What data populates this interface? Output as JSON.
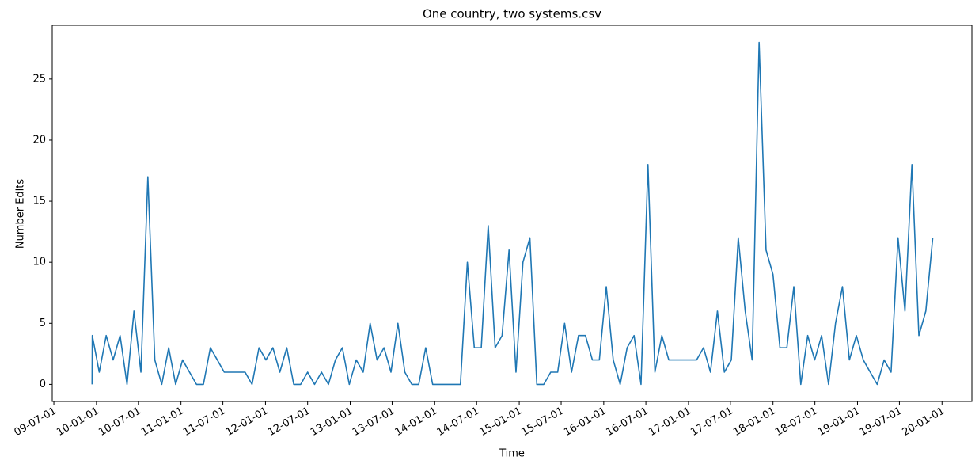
{
  "chart_data": {
    "type": "line",
    "title": "One country, two systems.csv",
    "xlabel": "Time",
    "ylabel": "Number Edits",
    "color": "#1f77b4",
    "x": [
      "09-12-13",
      "09-12-14",
      "10-01-13",
      "10-02-12",
      "10-03-14",
      "10-04-13",
      "10-05-13",
      "10-06-12",
      "10-07-12",
      "10-08-11",
      "10-09-10",
      "10-10-10",
      "10-11-09",
      "10-12-09",
      "11-01-08",
      "11-02-07",
      "11-03-09",
      "11-04-08",
      "11-05-08",
      "11-06-07",
      "11-07-07",
      "11-08-06",
      "11-09-05",
      "11-10-05",
      "11-11-04",
      "11-12-04",
      "12-01-03",
      "12-02-02",
      "12-03-03",
      "12-04-02",
      "12-05-02",
      "12-06-01",
      "12-07-01",
      "12-07-31",
      "12-08-30",
      "12-09-29",
      "12-10-29",
      "12-11-28",
      "12-12-28",
      "13-01-27",
      "13-02-26",
      "13-03-28",
      "13-04-27",
      "13-05-27",
      "13-06-26",
      "13-07-26",
      "13-08-25",
      "13-09-24",
      "13-10-24",
      "13-11-23",
      "13-12-23",
      "14-01-22",
      "14-02-21",
      "14-03-23",
      "14-04-22",
      "14-05-22",
      "14-06-21",
      "14-07-21",
      "14-08-20",
      "14-09-19",
      "14-10-19",
      "14-11-18",
      "14-12-18",
      "15-01-17",
      "15-02-16",
      "15-03-18",
      "15-04-17",
      "15-05-17",
      "15-06-16",
      "15-07-16",
      "15-08-15",
      "15-09-14",
      "15-10-14",
      "15-11-13",
      "15-12-13",
      "16-01-12",
      "16-02-11",
      "16-03-12",
      "16-04-11",
      "16-05-11",
      "16-06-10",
      "16-07-10",
      "16-08-09",
      "16-09-08",
      "16-10-08",
      "16-11-07",
      "16-12-07",
      "17-01-06",
      "17-02-05",
      "17-03-07",
      "17-04-06",
      "17-05-06",
      "17-06-05",
      "17-07-05",
      "17-08-04",
      "17-09-03",
      "17-10-03",
      "17-11-02",
      "17-12-02",
      "18-01-01",
      "18-01-31",
      "18-03-02",
      "18-04-01",
      "18-05-01",
      "18-05-31",
      "18-06-30",
      "18-07-30",
      "18-08-29",
      "18-09-28",
      "18-10-28",
      "18-11-27",
      "18-12-27",
      "19-01-26",
      "19-02-25",
      "19-03-27",
      "19-04-26",
      "19-05-26",
      "19-06-25",
      "19-07-25",
      "19-08-24",
      "19-09-23",
      "19-10-23",
      "19-11-22"
    ],
    "values": [
      0,
      4,
      1,
      4,
      2,
      4,
      0,
      6,
      1,
      17,
      2,
      0,
      3,
      0,
      2,
      1,
      0,
      0,
      3,
      2,
      1,
      1,
      1,
      1,
      0,
      3,
      2,
      3,
      1,
      3,
      0,
      0,
      1,
      0,
      1,
      0,
      2,
      3,
      0,
      2,
      1,
      5,
      2,
      3,
      1,
      5,
      1,
      0,
      0,
      3,
      0,
      0,
      0,
      0,
      0,
      10,
      3,
      3,
      13,
      3,
      4,
      11,
      1,
      10,
      12,
      0,
      0,
      1,
      1,
      5,
      1,
      4,
      4,
      2,
      2,
      8,
      2,
      0,
      3,
      4,
      0,
      18,
      1,
      4,
      2,
      2,
      2,
      2,
      2,
      3,
      1,
      6,
      1,
      2,
      12,
      6,
      2,
      28,
      11,
      9,
      3,
      3,
      8,
      0,
      4,
      2,
      4,
      0,
      5,
      8,
      2,
      4,
      2,
      1,
      0,
      2,
      1,
      12,
      6,
      18,
      4,
      6,
      12
    ],
    "xlim": [
      "09-06-24",
      "20-05-09"
    ],
    "xticks": [
      "09-07-01",
      "10-01-01",
      "10-07-01",
      "11-01-01",
      "11-07-01",
      "12-01-01",
      "12-07-01",
      "13-01-01",
      "13-07-01",
      "14-01-01",
      "14-07-01",
      "15-01-01",
      "15-07-01",
      "16-01-01",
      "16-07-01",
      "17-01-01",
      "17-07-01",
      "18-01-01",
      "18-07-01",
      "19-01-01",
      "19-07-01",
      "20-01-01"
    ],
    "ylim": [
      -1.4,
      29.4
    ],
    "yticks": [
      0,
      5,
      10,
      15,
      20,
      25
    ]
  }
}
